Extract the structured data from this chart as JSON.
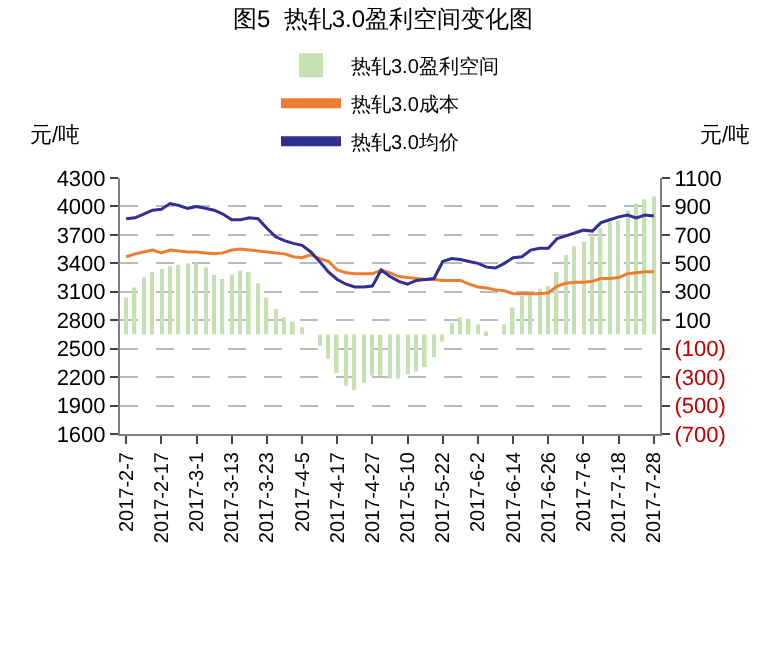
{
  "chart_data": {
    "type": "line",
    "title": "图5  热轧3.0盈利空间变化图",
    "ylabel": "元/吨",
    "y2label": "元/吨",
    "categories": [
      "2017-2-7",
      null,
      null,
      null,
      "2017-2-17",
      null,
      null,
      null,
      "2017-3-1",
      null,
      null,
      null,
      "2017-3-13",
      null,
      null,
      null,
      "2017-3-23",
      null,
      null,
      null,
      "2017-4-5",
      null,
      null,
      null,
      "2017-4-17",
      null,
      null,
      null,
      "2017-4-27",
      null,
      null,
      null,
      "2017-5-10",
      null,
      null,
      null,
      "2017-5-22",
      null,
      null,
      null,
      "2017-6-2",
      null,
      null,
      null,
      "2017-6-14",
      null,
      null,
      null,
      "2017-6-26",
      null,
      null,
      null,
      "2017-7-6",
      null,
      null,
      null,
      "2017-7-18",
      null,
      null,
      null,
      "2017-7-28"
    ],
    "series": [
      {
        "name": "热轧3.0盈利空间",
        "type": "bar",
        "axis": "y2",
        "color": "#c5e0b3",
        "values": [
          260,
          330,
          400,
          440,
          460,
          480,
          490,
          500,
          500,
          470,
          420,
          390,
          420,
          450,
          440,
          360,
          260,
          180,
          120,
          90,
          50,
          0,
          -80,
          -170,
          -270,
          -360,
          -390,
          -340,
          -290,
          -290,
          -310,
          -310,
          -280,
          -260,
          -230,
          -160,
          -50,
          80,
          120,
          110,
          70,
          20,
          0,
          70,
          190,
          270,
          300,
          320,
          340,
          440,
          560,
          620,
          650,
          700,
          750,
          790,
          800,
          870,
          920,
          950,
          970
        ]
      },
      {
        "name": "热轧3.0成本",
        "color": "#ed7d31",
        "values": [
          3470,
          3500,
          3520,
          3540,
          3510,
          3540,
          3530,
          3520,
          3520,
          3510,
          3500,
          3510,
          3540,
          3550,
          3540,
          3530,
          3520,
          3510,
          3500,
          3470,
          3460,
          3490,
          3450,
          3420,
          3330,
          3300,
          3290,
          3290,
          3290,
          3330,
          3300,
          3260,
          3250,
          3240,
          3230,
          3230,
          3220,
          3220,
          3220,
          3180,
          3150,
          3140,
          3120,
          3110,
          3080,
          3080,
          3080,
          3080,
          3090,
          3160,
          3190,
          3200,
          3200,
          3210,
          3240,
          3240,
          3250,
          3290,
          3300,
          3310,
          3310
        ]
      },
      {
        "name": "热轧3.0均价",
        "color": "#2e3192",
        "values": [
          3870,
          3880,
          3920,
          3960,
          3970,
          4030,
          4010,
          3980,
          4000,
          3980,
          3960,
          3920,
          3860,
          3860,
          3880,
          3870,
          3770,
          3680,
          3640,
          3610,
          3590,
          3520,
          3420,
          3310,
          3230,
          3180,
          3150,
          3150,
          3160,
          3330,
          3260,
          3210,
          3180,
          3220,
          3230,
          3240,
          3420,
          3450,
          3440,
          3420,
          3400,
          3360,
          3350,
          3400,
          3460,
          3470,
          3540,
          3560,
          3560,
          3660,
          3690,
          3720,
          3750,
          3740,
          3830,
          3860,
          3890,
          3910,
          3880,
          3910,
          3900
        ]
      }
    ],
    "ylim": [
      1600,
      4300
    ],
    "yticks": [
      1600,
      1900,
      2200,
      2500,
      2800,
      3100,
      3400,
      3700,
      4000,
      4300
    ],
    "y2lim": [
      -700,
      1100
    ],
    "y2ticks": [
      {
        "value": -700,
        "label": "(700)"
      },
      {
        "value": -500,
        "label": "(500)"
      },
      {
        "value": -300,
        "label": "(300)"
      },
      {
        "value": -100,
        "label": "(100)"
      },
      100,
      300,
      500,
      700,
      900,
      1100
    ],
    "grid": "y",
    "legend": "top"
  }
}
